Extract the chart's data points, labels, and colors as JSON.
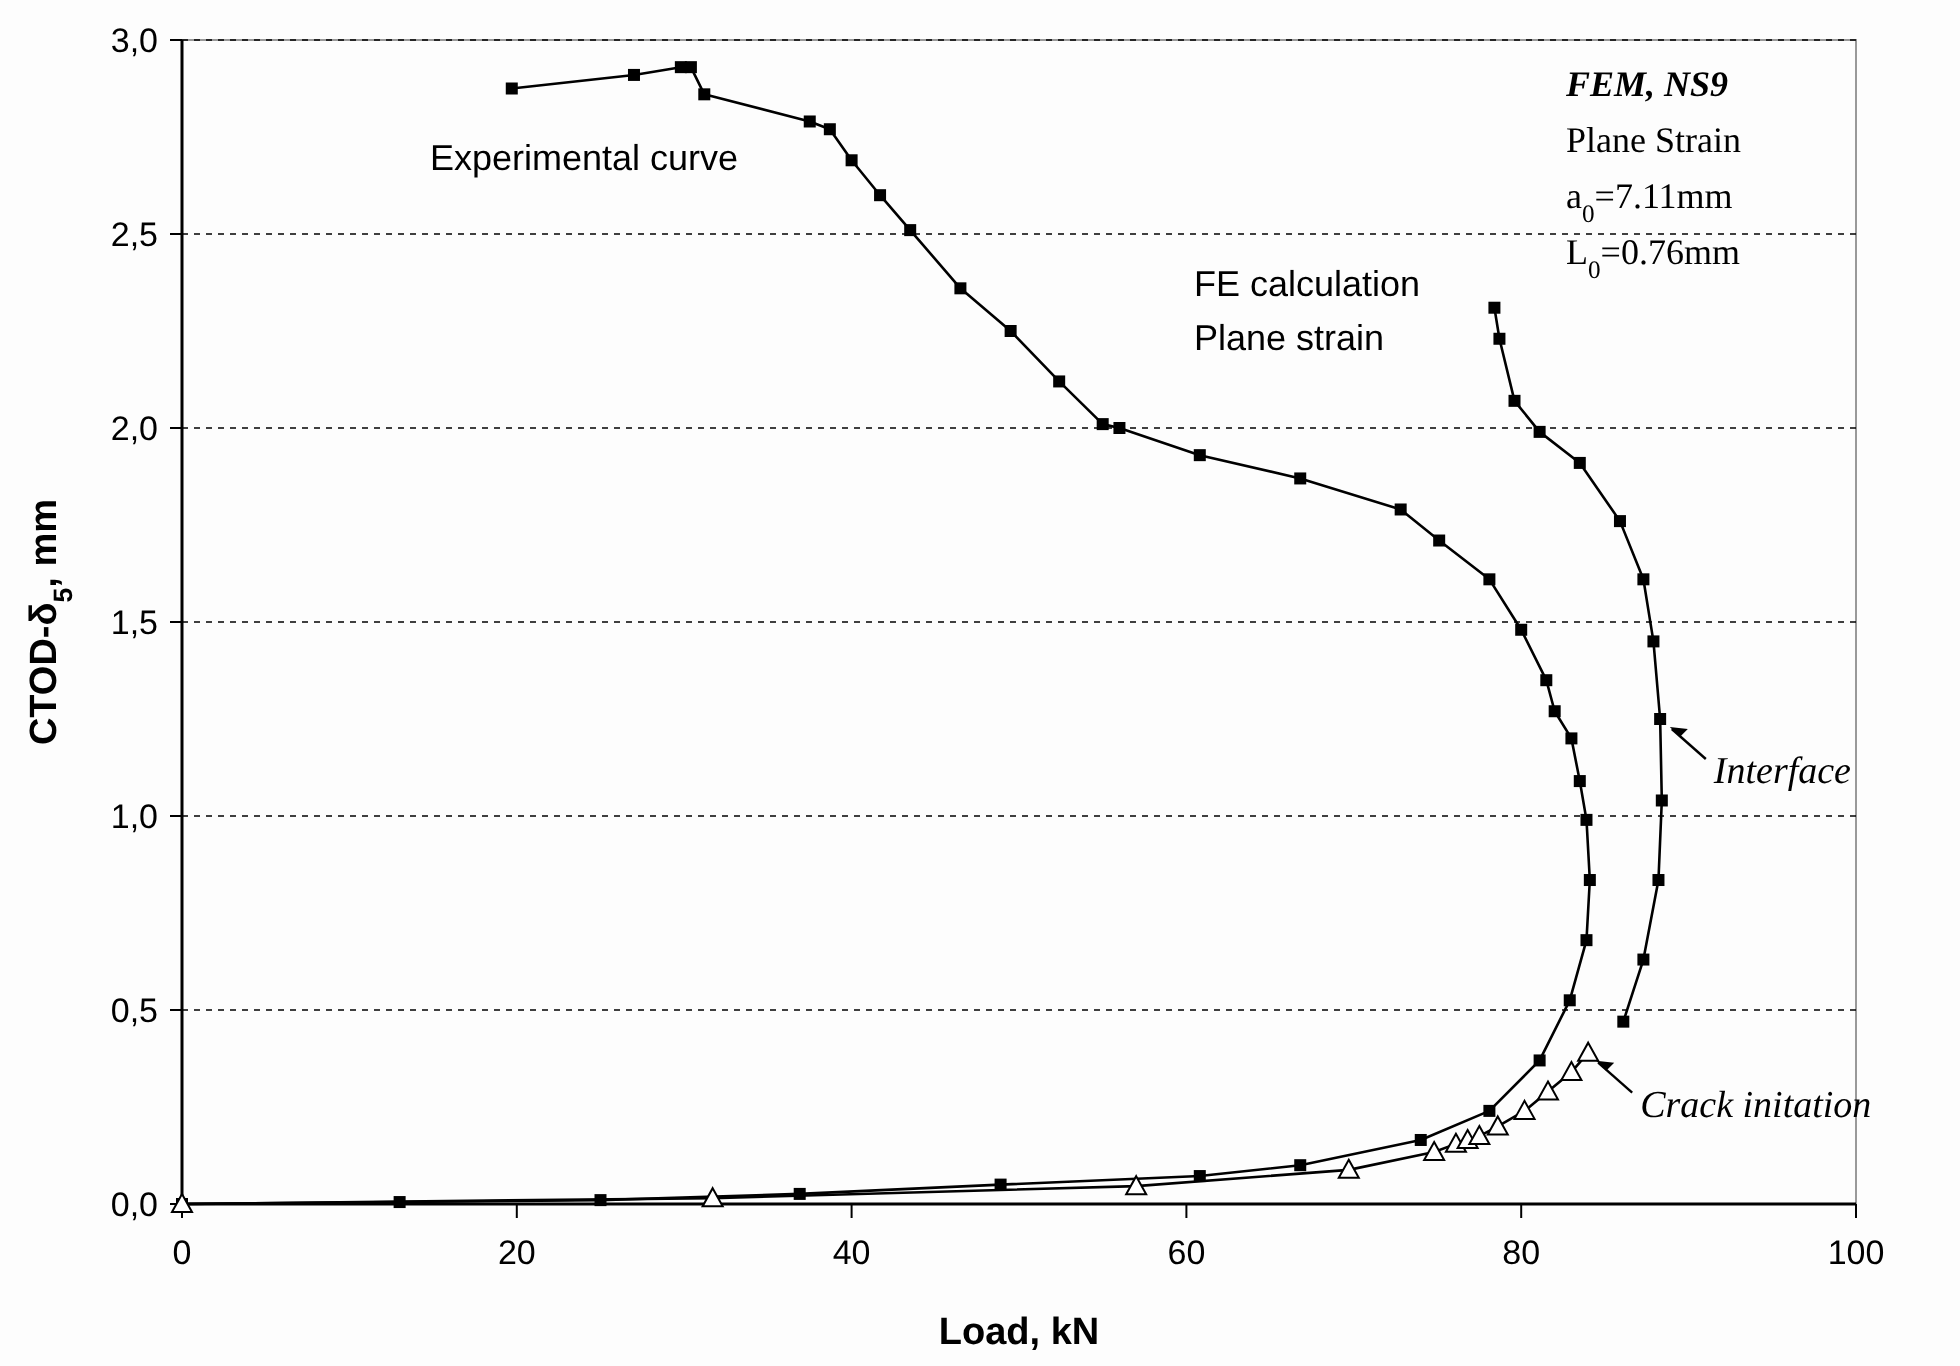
{
  "chart_data": {
    "type": "line",
    "xlabel": "Load, kN",
    "ylabel": "CTOD-δ$_{5}$, mm",
    "xlim": [
      0,
      100
    ],
    "xticks": [
      0,
      20,
      40,
      60,
      80,
      100
    ],
    "ylim": [
      0,
      3
    ],
    "yticks": [
      {
        "value": 0,
        "label": "0,0"
      },
      {
        "value": 0.5,
        "label": "0,5"
      },
      {
        "value": 1,
        "label": "1,0"
      },
      {
        "value": 1.5,
        "label": "1,5"
      },
      {
        "value": 2,
        "label": "2,0"
      },
      {
        "value": 2.5,
        "label": "2,5"
      },
      {
        "value": 3,
        "label": "3,0"
      }
    ],
    "grid": "y",
    "series": [
      {
        "name": "Experimental curve",
        "color": "#000000",
        "marker": "square",
        "x": [
          0,
          13,
          25,
          36.9,
          48.9,
          60.8,
          66.8,
          74,
          78.1,
          81.1,
          82.9,
          83.9,
          84.1,
          83.9,
          83.5,
          83,
          82,
          81.5,
          80,
          78.1,
          75.1,
          72.8,
          66.8,
          60.8,
          56,
          55,
          52.4,
          49.5,
          46.5,
          43.5,
          41.7,
          40,
          38.7,
          37.5,
          31.2,
          30.4,
          29.8,
          27,
          19.7
        ],
        "values": [
          0,
          0.005,
          0.01,
          0.026,
          0.05,
          0.072,
          0.1,
          0.165,
          0.24,
          0.37,
          0.525,
          0.68,
          0.835,
          0.99,
          1.09,
          1.2,
          1.27,
          1.35,
          1.48,
          1.61,
          1.71,
          1.79,
          1.87,
          1.93,
          2,
          2.01,
          2.12,
          2.25,
          2.36,
          2.51,
          2.6,
          2.69,
          2.77,
          2.79,
          2.86,
          2.93,
          2.93,
          2.91,
          2.875
        ]
      },
      {
        "color": "#000000",
        "marker": "triangle",
        "x": [
          0,
          31.7,
          57,
          69.7,
          74.8,
          76.1,
          76.8,
          77.5,
          78.6,
          80.2,
          81.6,
          83,
          84
        ],
        "values": [
          0,
          0.015,
          0.046,
          0.088,
          0.134,
          0.155,
          0.165,
          0.175,
          0.2,
          0.24,
          0.29,
          0.34,
          0.39
        ]
      },
      {
        "name": "FE calculation\nPlane strain",
        "color": "#000000",
        "marker": "square",
        "x": [
          86.1,
          87.3,
          88.2,
          88.4,
          88.3,
          87.9,
          87.3,
          85.9,
          83.5,
          81.1,
          79.6,
          78.7,
          78.4
        ],
        "values": [
          0.47,
          0.63,
          0.835,
          1.04,
          1.25,
          1.45,
          1.61,
          1.76,
          1.91,
          1.99,
          2.07,
          2.23,
          2.31
        ]
      }
    ],
    "annotations": [
      "FEM, NS9",
      "Plane Strain",
      "a$_{0}$=7.11mm",
      "L$_{0}$=0.76mm",
      {
        "text": "Interface",
        "x": 88.4,
        "y": 1.25
      },
      {
        "text": "Crack initation",
        "x": 84,
        "y": 0.39
      }
    ]
  }
}
